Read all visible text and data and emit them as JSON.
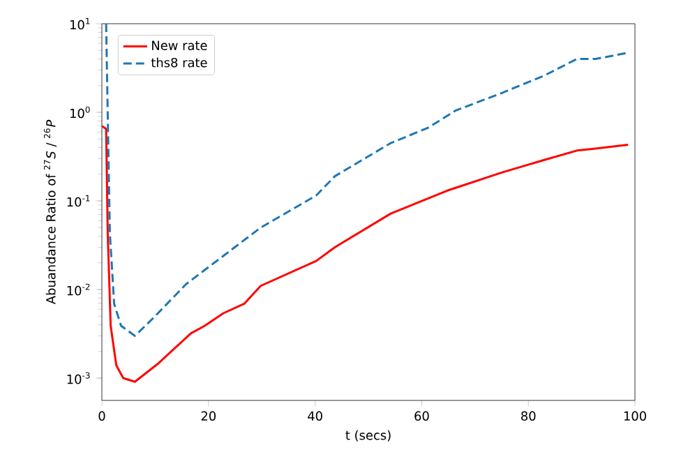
{
  "chart_data": {
    "type": "line",
    "xlabel": "t (secs)",
    "ylabel": "Abuandance Ratio of $^{27}$*S* / $^{26}$*P*",
    "log": "y",
    "legend": "top left",
    "grid": false,
    "xlim": [
      0,
      100
    ],
    "xticks": [
      0,
      20,
      40,
      60,
      80,
      100
    ],
    "ylim": [
      0.00056,
      10
    ],
    "yticks": [
      {
        "value": 0.001,
        "label": "10$^{-3}$"
      },
      {
        "value": 0.01,
        "label": "10$^{-2}$"
      },
      {
        "value": 0.1,
        "label": "10$^{-1}$"
      },
      {
        "value": 1,
        "label": "10$^{0}$"
      },
      {
        "value": 10,
        "label": "10$^{1}$"
      }
    ],
    "series": [
      {
        "name": "New rate",
        "color": "#ff0000",
        "line_style": "solid",
        "x": [
          0,
          0.8,
          1.1,
          1.65,
          2.7,
          4,
          6.2,
          10.5,
          16.7,
          19.3,
          22.8,
          26.7,
          29.8,
          40.2,
          43.7,
          54.2,
          64.7,
          75.1,
          83,
          89.1,
          92.6,
          98.7
        ],
        "values": [
          0.7,
          0.65,
          0.043,
          0.0039,
          0.0014,
          0.001,
          0.00091,
          0.00145,
          0.0032,
          0.0039,
          0.0054,
          0.0069,
          0.011,
          0.021,
          0.03,
          0.072,
          0.13,
          0.21,
          0.29,
          0.37,
          0.39,
          0.43
        ]
      },
      {
        "name": "ths8 rate",
        "color": "#1f77b4",
        "line_style": "dashed",
        "x": [
          0.8,
          1.1,
          1.5,
          2.3,
          3.6,
          6.2,
          9.7,
          15.8,
          22.8,
          29.8,
          40.2,
          43.7,
          54.2,
          61.2,
          66.4,
          75.1,
          83,
          89.1,
          92.6,
          98.7
        ],
        "values": [
          10,
          0.93,
          0.043,
          0.0069,
          0.0039,
          0.003,
          0.0048,
          0.0115,
          0.024,
          0.05,
          0.115,
          0.19,
          0.45,
          0.67,
          1.05,
          1.66,
          2.6,
          4.0,
          4.0,
          4.7
        ]
      }
    ]
  }
}
